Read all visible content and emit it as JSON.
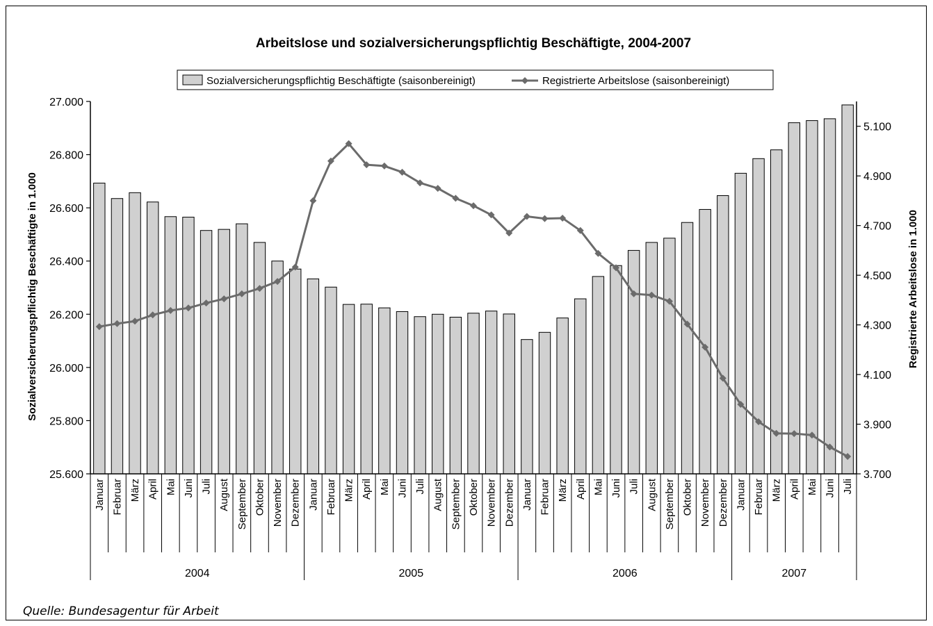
{
  "chart_data": {
    "type": "bar",
    "title": "Arbeitslose und sozialversicherungspflichtig Beschäftigte, 2004-2007",
    "source": "Quelle: Bundesagentur für Arbeit",
    "legend_placement": "top-center",
    "grid": false,
    "colors": {
      "bars": "#d0d0d0",
      "bar_stroke": "#000000",
      "line": "#6b6b6b"
    },
    "ylabel": "Sozialversicherungspflichtig Beschäftigte in 1.000",
    "y2label": "Registrierte Arbeitslose in 1.000",
    "ylim": [
      25600,
      27000
    ],
    "y2lim": [
      3700,
      5200
    ],
    "yticks": [
      "25.600",
      "25.800",
      "26.000",
      "26.200",
      "26.400",
      "26.600",
      "26.800",
      "27.000"
    ],
    "y2ticks": [
      "3.700",
      "3.900",
      "4.100",
      "4.300",
      "4.500",
      "4.700",
      "4.900",
      "5.100"
    ],
    "years": [
      "2004",
      "2005",
      "2006",
      "2007"
    ],
    "categories": [
      "Januar",
      "Februar",
      "März",
      "April",
      "Mai",
      "Juni",
      "Juli",
      "August",
      "September",
      "Oktober",
      "November",
      "Dezember",
      "Januar",
      "Februar",
      "März",
      "April",
      "Mai",
      "Juni",
      "Juli",
      "August",
      "September",
      "Oktober",
      "November",
      "Dezember",
      "Januar",
      "Februar",
      "März",
      "April",
      "Mai",
      "Juni",
      "Juli",
      "August",
      "September",
      "Oktober",
      "November",
      "Dezember",
      "Januar",
      "Februar",
      "März",
      "April",
      "Mai",
      "Juni",
      "Juli"
    ],
    "series": [
      {
        "name": "Sozialversicherungspflichtig Beschäftigte (saisonbereinigt)",
        "type": "bar",
        "axis": "left",
        "values": [
          26693,
          26635,
          26657,
          26622,
          26567,
          26565,
          26515,
          26519,
          26540,
          26470,
          26400,
          26370,
          26333,
          26302,
          26237,
          26238,
          26224,
          26210,
          26191,
          26200,
          26189,
          26204,
          26212,
          26201,
          26105,
          26132,
          26186,
          26258,
          26342,
          26383,
          26440,
          26470,
          26486,
          26545,
          26594,
          26646,
          26730,
          26785,
          26818,
          26920,
          26928,
          26935,
          26987
        ]
      },
      {
        "name": "Registrierte Arbeitslose (saisonbereinigt)",
        "type": "line",
        "axis": "right",
        "values": [
          4293,
          4305,
          4315,
          4340,
          4358,
          4368,
          4388,
          4405,
          4425,
          4447,
          4475,
          4533,
          4800,
          4960,
          5030,
          4945,
          4940,
          4915,
          4872,
          4850,
          4810,
          4780,
          4743,
          4670,
          4737,
          4728,
          4730,
          4680,
          4588,
          4530,
          4425,
          4420,
          4395,
          4303,
          4210,
          4085,
          3980,
          3910,
          3863,
          3862,
          3856,
          3808,
          3770
        ]
      }
    ]
  }
}
